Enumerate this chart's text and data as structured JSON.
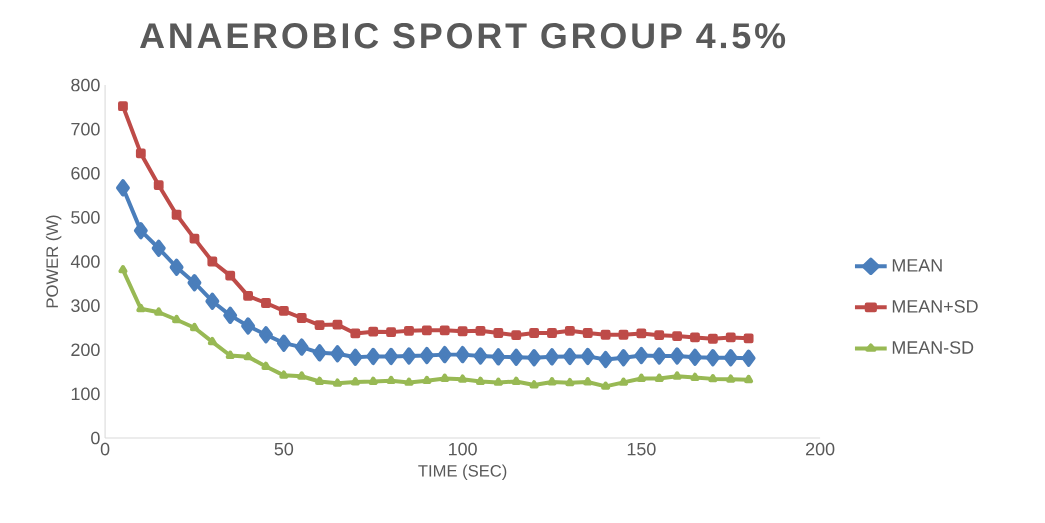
{
  "chart_data": {
    "type": "line",
    "title": "ANAEROBIC SPORT GROUP 4.5%",
    "xlabel": "TIME (SEC)",
    "ylabel": "POWER (W)",
    "x": [
      5,
      10,
      15,
      20,
      25,
      30,
      35,
      40,
      45,
      50,
      55,
      60,
      65,
      70,
      75,
      80,
      85,
      90,
      95,
      100,
      105,
      110,
      115,
      120,
      125,
      130,
      135,
      140,
      145,
      150,
      155,
      160,
      165,
      170,
      175,
      180
    ],
    "series": [
      {
        "name": "MEAN",
        "color": "#4a7ebb",
        "marker": "diamond",
        "values": [
          567,
          470,
          430,
          387,
          352,
          310,
          278,
          254,
          234,
          215,
          206,
          193,
          191,
          183,
          185,
          185,
          186,
          187,
          189,
          189,
          186,
          184,
          183,
          182,
          184,
          185,
          185,
          178,
          182,
          187,
          186,
          186,
          183,
          182,
          182,
          181
        ]
      },
      {
        "name": "MEAN+SD",
        "color": "#be4b48",
        "marker": "square",
        "values": [
          752,
          645,
          573,
          506,
          452,
          400,
          368,
          322,
          306,
          288,
          272,
          256,
          257,
          237,
          241,
          240,
          243,
          244,
          244,
          242,
          243,
          238,
          233,
          238,
          238,
          243,
          238,
          234,
          234,
          237,
          233,
          231,
          228,
          225,
          228,
          226
        ]
      },
      {
        "name": "MEAN-SD",
        "color": "#98b954",
        "marker": "triangle",
        "values": [
          381,
          293,
          285,
          268,
          250,
          218,
          187,
          184,
          162,
          142,
          140,
          128,
          124,
          127,
          128,
          130,
          126,
          130,
          135,
          133,
          128,
          126,
          128,
          120,
          127,
          125,
          127,
          117,
          126,
          135,
          135,
          140,
          137,
          134,
          133,
          132
        ]
      }
    ],
    "xlim": [
      0,
      200
    ],
    "xticks": [
      0,
      50,
      100,
      150,
      200
    ],
    "ylim": [
      0,
      800
    ],
    "yticks": [
      0,
      100,
      200,
      300,
      400,
      500,
      600,
      700,
      800
    ],
    "grid": false,
    "legend": "right",
    "line_style": "solid"
  }
}
